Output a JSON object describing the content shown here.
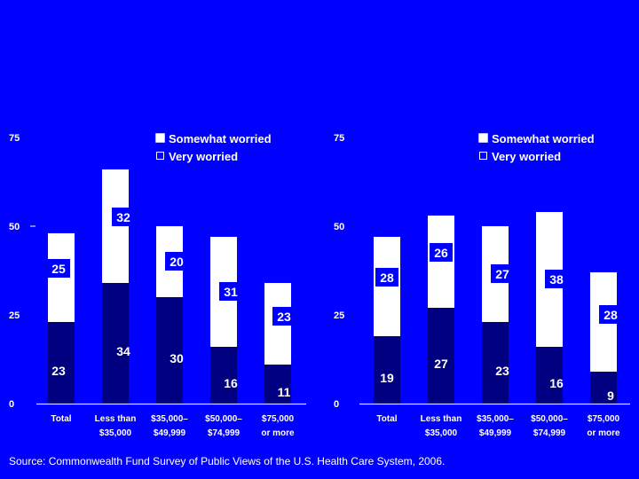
{
  "colors": {
    "background": "#0000ff",
    "somewhat": "#000080",
    "very": "#ffffff",
    "label_box": "#0000ff",
    "text": "#ffffff"
  },
  "source": "Source: Commonwealth Fund Survey of Public Views of the U.S. Health Care System, 2006.",
  "chart_data": [
    {
      "type": "bar",
      "stacked": true,
      "categories": [
        [
          "Total"
        ],
        [
          "Less than",
          "$35,000"
        ],
        [
          "$35,000–",
          "$49,999"
        ],
        [
          "$50,000–",
          "$74,999"
        ],
        [
          "$75,000",
          "or more"
        ]
      ],
      "series": [
        {
          "name": "Somewhat worried",
          "values": [
            23,
            34,
            30,
            16,
            11
          ]
        },
        {
          "name": "Very worried",
          "values": [
            25,
            32,
            20,
            31,
            23
          ]
        }
      ],
      "ylim": [
        0,
        75
      ],
      "yticks": [
        "0",
        "25",
        "50",
        "75"
      ],
      "legend": "top-right"
    },
    {
      "type": "bar",
      "stacked": true,
      "categories": [
        [
          "Total"
        ],
        [
          "Less than",
          "$35,000"
        ],
        [
          "$35,000–",
          "$49,999"
        ],
        [
          "$50,000–",
          "$74,999"
        ],
        [
          "$75,000",
          "or more"
        ]
      ],
      "series": [
        {
          "name": "Somewhat worried",
          "values": [
            19,
            27,
            23,
            16,
            9
          ]
        },
        {
          "name": "Very worried",
          "values": [
            28,
            26,
            27,
            38,
            28
          ]
        }
      ],
      "ylim": [
        0,
        75
      ],
      "yticks": [
        "0",
        "25",
        "50",
        "75"
      ],
      "legend": "top-right"
    }
  ]
}
